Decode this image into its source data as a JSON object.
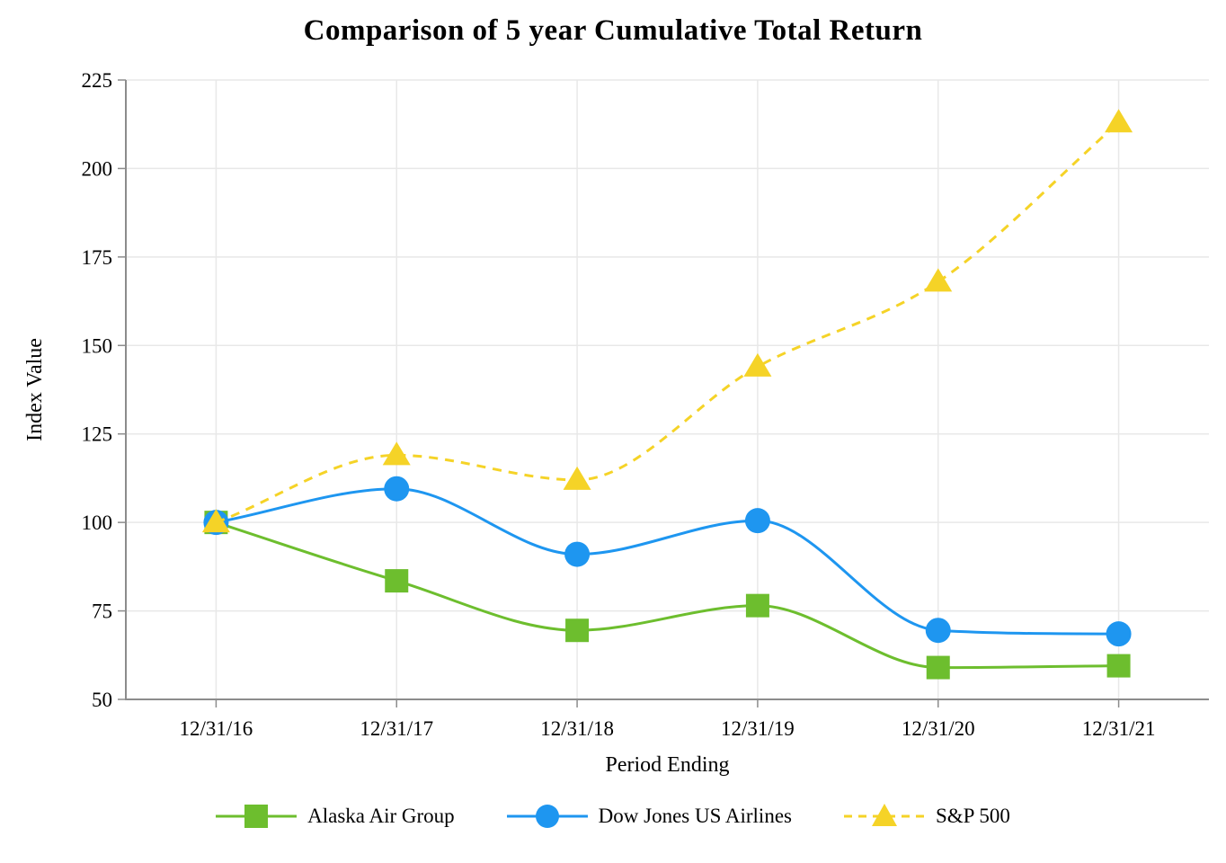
{
  "chart_data": {
    "type": "line",
    "title": "Comparison of 5 year Cumulative Total Return",
    "xlabel": "Period Ending",
    "ylabel": "Index Value",
    "categories": [
      "12/31/16",
      "12/31/17",
      "12/31/18",
      "12/31/19",
      "12/31/20",
      "12/31/21"
    ],
    "ylim": [
      50,
      225
    ],
    "ytick_interval": 25,
    "yticks": [
      50,
      75,
      100,
      125,
      150,
      175,
      200,
      225
    ],
    "grid": true,
    "legend_position": "bottom-center",
    "series": [
      {
        "name": "Alaska Air Group",
        "marker": "square",
        "line": "solid",
        "color": "#6DBE2E",
        "values": [
          100,
          83.5,
          69.5,
          76.5,
          59,
          59.5
        ]
      },
      {
        "name": "Dow Jones US Airlines",
        "marker": "circle",
        "line": "solid",
        "color": "#1E96F0",
        "values": [
          100,
          109.5,
          91,
          100.5,
          69.5,
          68.5
        ]
      },
      {
        "name": "S&P 500",
        "marker": "triangle",
        "line": "dashed",
        "color": "#F5D327",
        "values": [
          100,
          119,
          112,
          144,
          168,
          213
        ]
      }
    ]
  },
  "axis_style": {
    "spine_color": "#8C8C8C",
    "tick_color": "#8C8C8C",
    "grid_color": "#E8E8E8",
    "text_color": "#000000"
  }
}
